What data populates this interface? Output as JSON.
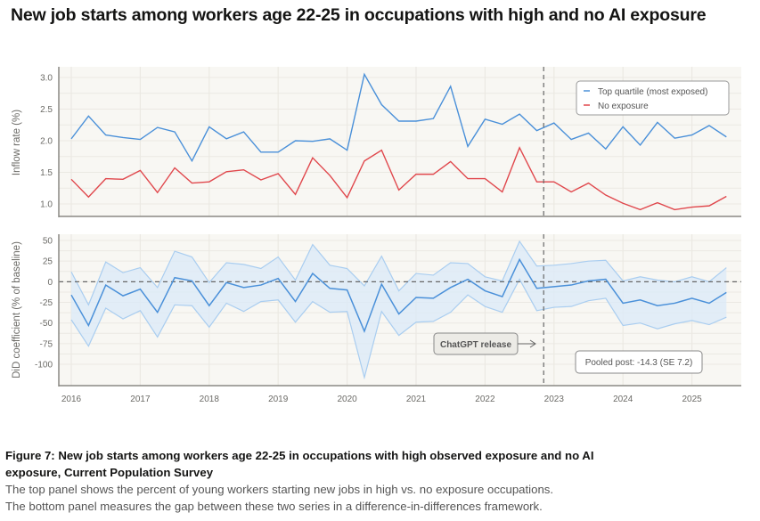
{
  "title": "New job starts among workers age 22-25 in occupations with high and no AI exposure",
  "caption": {
    "title": "Figure 7: New job starts among workers age 22-25 in occupations with high observed exposure and no AI exposure, Current Population Survey",
    "line1": "The top panel shows the percent of young workers starting new jobs in high vs. no exposure occupations.",
    "line2": "The bottom panel measures the gap between these two series in a difference-in-differences framework."
  },
  "colors": {
    "blue": "#4a90d9",
    "red": "#e0474c",
    "band": "#dbe9f8",
    "band_edge": "#a9cdf0",
    "plot_bg": "#f8f7f3"
  },
  "chart_data": [
    {
      "type": "line",
      "panel": "top",
      "ylabel": "Inflow rate (%)",
      "ylim": [
        0.8,
        3.15
      ],
      "yticks": [
        "1.0",
        "1.5",
        "2.0",
        "2.5",
        "3.0"
      ],
      "x_start": 2016.0,
      "x_step": 0.25,
      "legend": "top-right",
      "series": [
        {
          "name": "Top quartile (most exposed)",
          "color": "#4a90d9",
          "values": [
            2.03,
            2.39,
            2.09,
            2.05,
            2.02,
            2.21,
            2.14,
            1.68,
            2.22,
            2.03,
            2.14,
            1.82,
            1.82,
            2.0,
            1.99,
            2.03,
            1.85,
            3.05,
            2.57,
            2.31,
            2.31,
            2.35,
            2.86,
            1.91,
            2.34,
            2.26,
            2.42,
            2.16,
            2.28,
            2.02,
            2.12,
            1.87,
            2.22,
            1.93,
            2.29,
            2.04,
            2.09,
            2.24,
            2.06
          ]
        },
        {
          "name": "No exposure",
          "color": "#e0474c",
          "values": [
            1.39,
            1.11,
            1.4,
            1.39,
            1.53,
            1.18,
            1.57,
            1.33,
            1.35,
            1.51,
            1.54,
            1.38,
            1.48,
            1.15,
            1.73,
            1.45,
            1.1,
            1.68,
            1.85,
            1.22,
            1.47,
            1.47,
            1.67,
            1.4,
            1.4,
            1.19,
            1.89,
            1.35,
            1.35,
            1.19,
            1.33,
            1.14,
            1.01,
            0.91,
            1.02,
            0.91,
            0.95,
            0.97,
            1.12
          ]
        }
      ]
    },
    {
      "type": "line",
      "panel": "bottom",
      "ylabel": "DiD coefficient (% of baseline)",
      "ylim": [
        -120,
        55
      ],
      "yticks": [
        "50",
        "25",
        "0",
        "-25",
        "-50",
        "-75",
        "-100"
      ],
      "xlim": [
        2015.8,
        2025.95
      ],
      "xticks": [
        "2016",
        "2017",
        "2018",
        "2019",
        "2020",
        "2021",
        "2022",
        "2023",
        "2024",
        "2025"
      ],
      "x_start": 2016.0,
      "x_step": 0.25,
      "series": [
        {
          "name": "DiD coefficient",
          "color": "#4a90d9",
          "values": [
            -16,
            -53,
            -4,
            -17,
            -9,
            -37,
            5,
            1,
            -29,
            -1,
            -7,
            -4,
            4,
            -24,
            10,
            -8,
            -10,
            -60,
            -3,
            -39,
            -19,
            -20,
            -7,
            3,
            -11,
            -18,
            27,
            -8,
            -6,
            -4,
            1,
            3,
            -26,
            -22,
            -29,
            -26,
            -20,
            -26,
            -13
          ]
        },
        {
          "name": "CI upper",
          "values": [
            12,
            -28,
            24,
            11,
            17,
            -7,
            37,
            30,
            -1,
            23,
            21,
            16,
            30,
            2,
            45,
            20,
            16,
            -5,
            31,
            -11,
            10,
            8,
            23,
            22,
            6,
            1,
            49,
            19,
            20,
            22,
            25,
            26,
            1,
            6,
            2,
            0,
            6,
            0,
            17
          ]
        },
        {
          "name": "CI lower",
          "values": [
            -46,
            -78,
            -32,
            -45,
            -35,
            -67,
            -28,
            -29,
            -55,
            -26,
            -36,
            -24,
            -22,
            -49,
            -24,
            -37,
            -36,
            -116,
            -36,
            -65,
            -49,
            -48,
            -37,
            -16,
            -30,
            -37,
            3,
            -35,
            -31,
            -30,
            -23,
            -20,
            -53,
            -50,
            -57,
            -51,
            -47,
            -52,
            -43
          ]
        }
      ],
      "reference_line_y": 0,
      "event_x": 2022.85,
      "annotations": {
        "event": "ChatGPT release",
        "pooled": "Pooled post: -14.3 (SE 7.2)"
      }
    }
  ]
}
